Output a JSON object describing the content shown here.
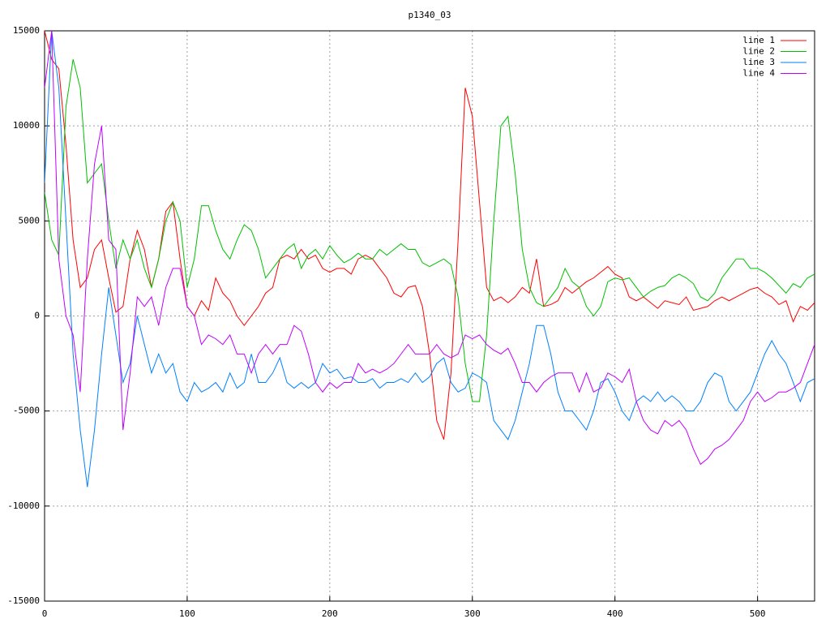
{
  "chart_data": {
    "type": "line",
    "title": "p1340_03",
    "x": [
      0,
      5,
      10,
      15,
      20,
      25,
      30,
      35,
      40,
      45,
      50,
      55,
      60,
      65,
      70,
      75,
      80,
      85,
      90,
      95,
      100,
      105,
      110,
      115,
      120,
      125,
      130,
      135,
      140,
      145,
      150,
      155,
      160,
      165,
      170,
      175,
      180,
      185,
      190,
      195,
      200,
      205,
      210,
      215,
      220,
      225,
      230,
      235,
      240,
      245,
      250,
      255,
      260,
      265,
      270,
      275,
      280,
      285,
      290,
      295,
      300,
      305,
      310,
      315,
      320,
      325,
      330,
      335,
      340,
      345,
      350,
      355,
      360,
      365,
      370,
      375,
      380,
      385,
      390,
      395,
      400,
      405,
      410,
      415,
      420,
      425,
      430,
      435,
      440,
      445,
      450,
      455,
      460,
      465,
      470,
      475,
      480,
      485,
      490,
      495,
      500,
      505,
      510,
      515,
      520,
      525,
      530,
      535,
      540
    ],
    "series": [
      {
        "name": "line 1",
        "color": "#ff0000",
        "values": [
          15000,
          13500,
          13000,
          9000,
          4000,
          1500,
          2000,
          3500,
          4000,
          2000,
          200,
          500,
          3000,
          4500,
          3500,
          1500,
          3000,
          5500,
          6000,
          3000,
          500,
          0,
          800,
          300,
          2000,
          1200,
          800,
          0,
          -500,
          0,
          500,
          1200,
          1500,
          3000,
          3200,
          3000,
          3500,
          3000,
          3200,
          2500,
          2300,
          2500,
          2500,
          2200,
          3000,
          3200,
          3000,
          2500,
          2000,
          1200,
          1000,
          1500,
          1600,
          500,
          -2000,
          -5500,
          -6500,
          -3000,
          4000,
          12000,
          10500,
          6000,
          1500,
          800,
          1000,
          700,
          1000,
          1500,
          1200,
          3000,
          500,
          600,
          800,
          1500,
          1200,
          1500,
          1800,
          2000,
          2300,
          2600,
          2200,
          2000,
          1000,
          800,
          1000,
          700,
          400,
          800,
          700,
          600,
          1000,
          300,
          400,
          500,
          800,
          1000,
          800,
          1000,
          1200,
          1400,
          1500,
          1200,
          1000,
          600,
          800,
          -300,
          500,
          300,
          700
        ]
      },
      {
        "name": "line 2",
        "color": "#00c000",
        "values": [
          6500,
          4000,
          3200,
          11000,
          13500,
          12000,
          7000,
          7500,
          8000,
          5000,
          2500,
          4000,
          3000,
          4000,
          2500,
          1500,
          3000,
          5000,
          6000,
          5000,
          1500,
          3000,
          5800,
          5800,
          4500,
          3500,
          3000,
          4000,
          4800,
          4500,
          3500,
          2000,
          2500,
          3000,
          3500,
          3800,
          2500,
          3200,
          3500,
          3000,
          3700,
          3200,
          2800,
          3000,
          3300,
          3000,
          3000,
          3500,
          3200,
          3500,
          3800,
          3500,
          3500,
          2800,
          2600,
          2800,
          3000,
          2700,
          1000,
          -2500,
          -4500,
          -4500,
          -1000,
          5000,
          10000,
          10500,
          7500,
          3500,
          1500,
          700,
          500,
          1000,
          1500,
          2500,
          1800,
          1500,
          500,
          0,
          500,
          1800,
          2000,
          1900,
          2000,
          1500,
          1000,
          1300,
          1500,
          1600,
          2000,
          2200,
          2000,
          1700,
          1000,
          800,
          1200,
          2000,
          2500,
          3000,
          3000,
          2500,
          2500,
          2300,
          2000,
          1600,
          1200,
          1700,
          1500,
          2000,
          2200
        ]
      },
      {
        "name": "line 3",
        "color": "#0080ff",
        "values": [
          7000,
          15000,
          12000,
          5000,
          -2000,
          -6000,
          -9000,
          -6000,
          -2000,
          1500,
          -1000,
          -3500,
          -2500,
          0,
          -1500,
          -3000,
          -2000,
          -3000,
          -2500,
          -4000,
          -4500,
          -3500,
          -4000,
          -3800,
          -3500,
          -4000,
          -3000,
          -3800,
          -3500,
          -2000,
          -3500,
          -3500,
          -3000,
          -2200,
          -3500,
          -3800,
          -3500,
          -3800,
          -3500,
          -2500,
          -3000,
          -2800,
          -3300,
          -3200,
          -3500,
          -3500,
          -3300,
          -3800,
          -3500,
          -3500,
          -3300,
          -3500,
          -3000,
          -3500,
          -3200,
          -2500,
          -2200,
          -3500,
          -4000,
          -3800,
          -3000,
          -3200,
          -3500,
          -5500,
          -6000,
          -6500,
          -5500,
          -4000,
          -2500,
          -500,
          -500,
          -2000,
          -4000,
          -5000,
          -5000,
          -5500,
          -6000,
          -5000,
          -3500,
          -3300,
          -4000,
          -5000,
          -5500,
          -4500,
          -4200,
          -4500,
          -4000,
          -4500,
          -4200,
          -4500,
          -5000,
          -5000,
          -4500,
          -3500,
          -3000,
          -3200,
          -4500,
          -5000,
          -4500,
          -4000,
          -3000,
          -2000,
          -1300,
          -2000,
          -2500,
          -3500,
          -4500,
          -3500,
          -3300
        ]
      },
      {
        "name": "line 4",
        "color": "#c000ff",
        "values": [
          12000,
          15000,
          3000,
          0,
          -1000,
          -4000,
          3000,
          8000,
          10000,
          4000,
          3500,
          -6000,
          -3000,
          1000,
          500,
          1000,
          -500,
          1500,
          2500,
          2500,
          500,
          0,
          -1500,
          -1000,
          -1200,
          -1500,
          -1000,
          -2000,
          -2000,
          -3000,
          -2000,
          -1500,
          -2000,
          -1500,
          -1500,
          -500,
          -800,
          -2000,
          -3500,
          -4000,
          -3500,
          -3800,
          -3500,
          -3500,
          -2500,
          -3000,
          -2800,
          -3000,
          -2800,
          -2500,
          -2000,
          -1500,
          -2000,
          -2000,
          -2000,
          -1500,
          -2000,
          -2200,
          -2000,
          -1000,
          -1200,
          -1000,
          -1500,
          -1800,
          -2000,
          -1700,
          -2500,
          -3500,
          -3500,
          -4000,
          -3500,
          -3200,
          -3000,
          -3000,
          -3000,
          -4000,
          -3000,
          -4000,
          -3800,
          -3000,
          -3200,
          -3500,
          -2800,
          -4500,
          -5500,
          -6000,
          -6200,
          -5500,
          -5800,
          -5500,
          -6000,
          -7000,
          -7800,
          -7500,
          -7000,
          -6800,
          -6500,
          -6000,
          -5500,
          -4500,
          -4000,
          -4500,
          -4300,
          -4000,
          -4000,
          -3800,
          -3500,
          -2500,
          -1500
        ]
      }
    ],
    "xlim": [
      0,
      540
    ],
    "xticks": [
      0,
      100,
      200,
      300,
      400,
      500
    ],
    "ylim": [
      -15000,
      15000
    ],
    "yticks": [
      -15000,
      -10000,
      -5000,
      0,
      5000,
      10000,
      15000
    ],
    "grid": true,
    "legend": "top-right"
  }
}
